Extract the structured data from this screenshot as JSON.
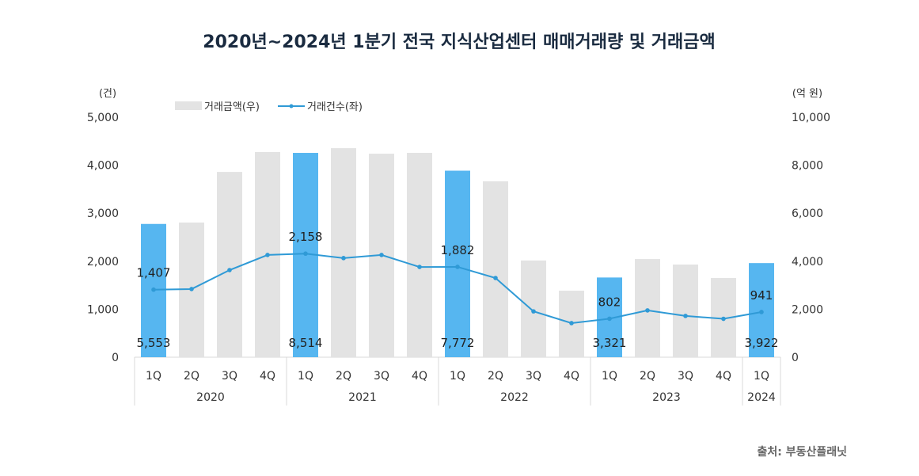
{
  "chart_data": {
    "type": "bar+line",
    "title": "2020년~2024년 1분기 전국 지식산업센터 매매거래량 및 거래금액",
    "source": "출처: 부동산플래닛",
    "left_unit": "(건)",
    "right_unit": "(억 원)",
    "left_ylim": [
      0,
      5000
    ],
    "right_ylim": [
      0,
      10000
    ],
    "left_ticks": [
      "0",
      "1,000",
      "2,000",
      "3,000",
      "4,000",
      "5,000"
    ],
    "right_ticks": [
      "0",
      "2,000",
      "4,000",
      "6,000",
      "8,000",
      "10,000"
    ],
    "quarters": [
      "1Q",
      "2Q",
      "3Q",
      "4Q",
      "1Q",
      "2Q",
      "3Q",
      "4Q",
      "1Q",
      "2Q",
      "3Q",
      "4Q",
      "1Q",
      "2Q",
      "3Q",
      "4Q",
      "1Q"
    ],
    "years": [
      {
        "label": "2020",
        "span": 4
      },
      {
        "label": "2021",
        "span": 4
      },
      {
        "label": "2022",
        "span": 4
      },
      {
        "label": "2023",
        "span": 4
      },
      {
        "label": "2024",
        "span": 1
      }
    ],
    "grid": false,
    "legend_position": "top-left",
    "series": [
      {
        "name": "거래금액(우)",
        "type": "bar",
        "axis": "right",
        "values": [
          5553,
          5610,
          7720,
          8550,
          8514,
          8710,
          8480,
          8515,
          7772,
          7330,
          4030,
          2770,
          3321,
          4090,
          3860,
          3300,
          3922
        ],
        "highlight": [
          0,
          4,
          8,
          12,
          16
        ],
        "labels": {
          "0": "5,553",
          "4": "8,514",
          "8": "7,772",
          "12": "3,321",
          "16": "3,922"
        }
      },
      {
        "name": "거래건수(좌)",
        "type": "line",
        "axis": "left",
        "values": [
          1407,
          1420,
          1815,
          2130,
          2158,
          2065,
          2130,
          1880,
          1882,
          1650,
          955,
          710,
          802,
          975,
          860,
          800,
          941
        ],
        "labels": {
          "0": "1,407",
          "4": "2,158",
          "8": "1,882",
          "12": "802",
          "16": "941"
        }
      }
    ],
    "colors": {
      "bar": "#E3E3E3",
      "bar_highlight": "#56B6F0",
      "line": "#2F9AD6",
      "title": "#1a2b40"
    }
  }
}
